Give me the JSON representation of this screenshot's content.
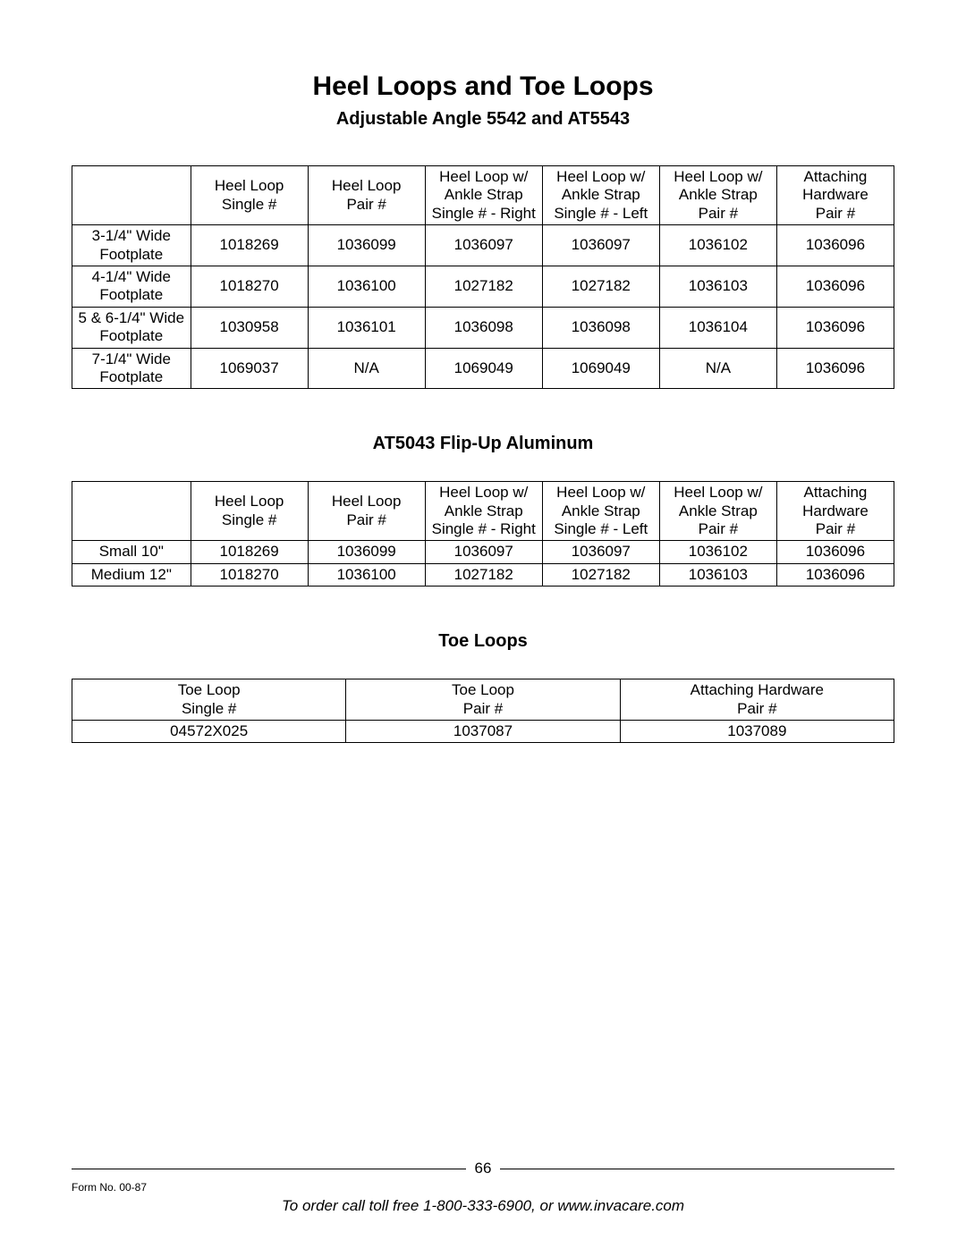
{
  "title": "Heel Loops and Toe Loops",
  "subtitle": "Adjustable Angle 5542 and AT5543",
  "section2": "AT5043 Flip-Up Aluminum",
  "section3": "Toe Loops",
  "headers67": {
    "c0": "",
    "c1a": "Heel Loop",
    "c1b": "Single #",
    "c2a": "Heel Loop",
    "c2b": "Pair #",
    "c3a": "Heel Loop w/",
    "c3b": "Ankle Strap",
    "c3c": "Single #  - Right",
    "c4a": "Heel Loop w/",
    "c4b": "Ankle Strap",
    "c4c": "Single #  - Left",
    "c5a": "Heel Loop w/",
    "c5b": "Ankle Strap",
    "c5c": "Pair #",
    "c6a": "Attaching",
    "c6b": "Hardware",
    "c6c": "Pair #"
  },
  "table1": {
    "rows": [
      {
        "label": "3-1/4\" Wide\nFootplate",
        "c1": "1018269",
        "c2": "1036099",
        "c3": "1036097",
        "c4": "1036097",
        "c5": "1036102",
        "c6": "1036096"
      },
      {
        "label": "4-1/4\" Wide\nFootplate",
        "c1": "1018270",
        "c2": "1036100",
        "c3": "1027182",
        "c4": "1027182",
        "c5": "1036103",
        "c6": "1036096"
      },
      {
        "label": "5 & 6-1/4\" Wide\nFootplate",
        "c1": "1030958",
        "c2": "1036101",
        "c3": "1036098",
        "c4": "1036098",
        "c5": "1036104",
        "c6": "1036096"
      },
      {
        "label": "7-1/4\" Wide\nFootplate",
        "c1": "1069037",
        "c2": "N/A",
        "c3": "1069049",
        "c4": "1069049",
        "c5": "N/A",
        "c6": "1036096"
      }
    ]
  },
  "table2": {
    "rows": [
      {
        "label": "Small 10\"",
        "c1": "1018269",
        "c2": "1036099",
        "c3": "1036097",
        "c4": "1036097",
        "c5": "1036102",
        "c6": "1036096"
      },
      {
        "label": "Medium 12\"",
        "c1": "1018270",
        "c2": "1036100",
        "c3": "1027182",
        "c4": "1027182",
        "c5": "1036103",
        "c6": "1036096"
      }
    ]
  },
  "table3": {
    "headers": {
      "c1a": "Toe Loop",
      "c1b": "Single #",
      "c2a": "Toe Loop",
      "c2b": "Pair #",
      "c3a": "Attaching Hardware",
      "c3b": "Pair #"
    },
    "row": {
      "c1": "04572X025",
      "c2": "1037087",
      "c3": "1037089"
    }
  },
  "page_number": "66",
  "form_no": "Form No. 00-87",
  "order_text": "To order call toll free 1-800-333-6900, or www.invacare.com"
}
